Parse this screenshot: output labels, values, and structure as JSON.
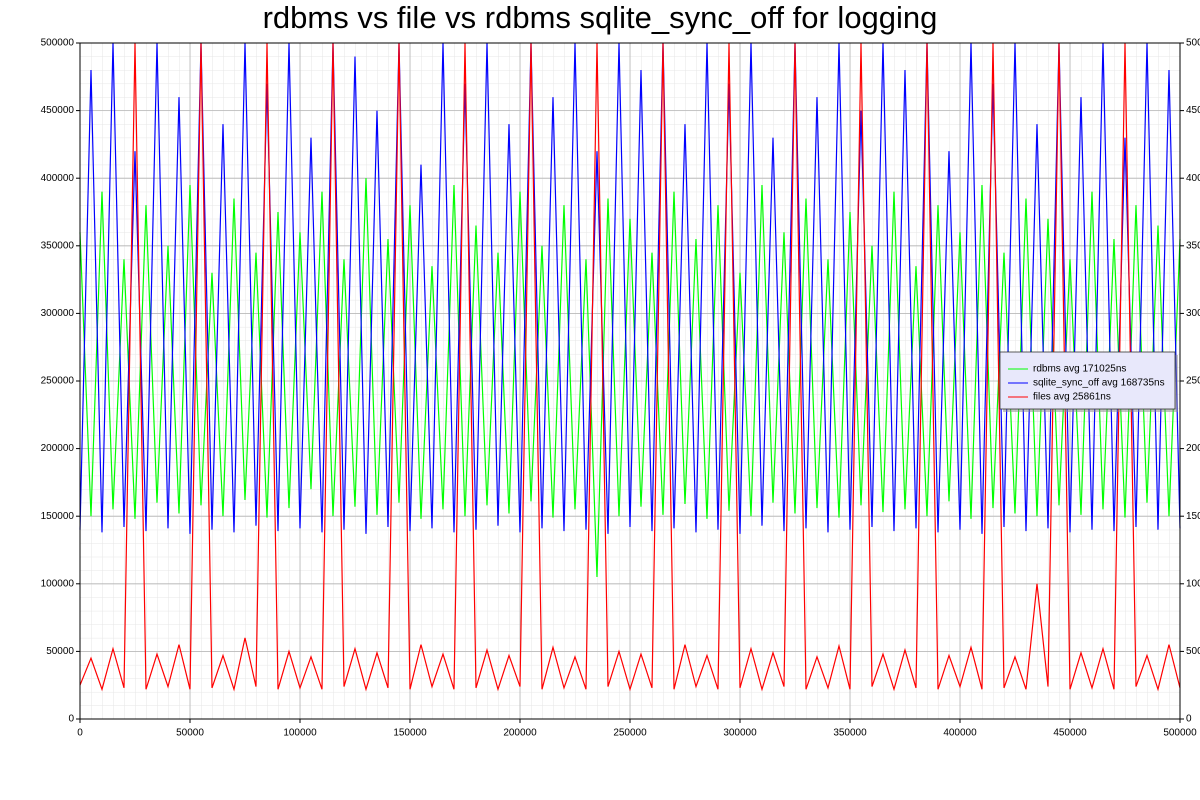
{
  "chart_data": {
    "type": "line",
    "title": "rdbms vs file vs  rdbms sqlite_sync_off for logging",
    "x": [
      0,
      5000,
      10000,
      15000,
      20000,
      25000,
      30000,
      35000,
      40000,
      45000,
      50000,
      55000,
      60000,
      65000,
      70000,
      75000,
      80000,
      85000,
      90000,
      95000,
      100000,
      105000,
      110000,
      115000,
      120000,
      125000,
      130000,
      135000,
      140000,
      145000,
      150000,
      155000,
      160000,
      165000,
      170000,
      175000,
      180000,
      185000,
      190000,
      195000,
      200000,
      205000,
      210000,
      215000,
      220000,
      225000,
      230000,
      235000,
      240000,
      245000,
      250000,
      255000,
      260000,
      265000,
      270000,
      275000,
      280000,
      285000,
      290000,
      295000,
      300000,
      305000,
      310000,
      315000,
      320000,
      325000,
      330000,
      335000,
      340000,
      345000,
      350000,
      355000,
      360000,
      365000,
      370000,
      375000,
      380000,
      385000,
      390000,
      395000,
      400000,
      405000,
      410000,
      415000,
      420000,
      425000,
      430000,
      435000,
      440000,
      445000,
      450000,
      455000,
      460000,
      465000,
      470000,
      475000,
      480000,
      485000,
      490000,
      495000,
      500000
    ],
    "series": [
      {
        "name": "rdbms avg 171025ns",
        "color": "#00ff00",
        "values": [
          360000,
          150000,
          390000,
          155000,
          340000,
          148000,
          380000,
          160000,
          350000,
          152000,
          395000,
          158000,
          330000,
          150000,
          385000,
          162000,
          345000,
          149000,
          375000,
          156000,
          360000,
          170000,
          390000,
          150000,
          340000,
          157000,
          400000,
          151000,
          355000,
          160000,
          380000,
          148000,
          335000,
          155000,
          395000,
          150000,
          365000,
          158000,
          345000,
          152000,
          390000,
          161000,
          350000,
          149000,
          380000,
          155000,
          340000,
          105000,
          385000,
          150000,
          370000,
          157000,
          345000,
          151000,
          390000,
          159000,
          355000,
          148000,
          380000,
          154000,
          330000,
          150000,
          395000,
          160000,
          360000,
          152000,
          385000,
          156000,
          340000,
          149000,
          375000,
          158000,
          350000,
          153000,
          390000,
          155000,
          335000,
          150000,
          380000,
          161000,
          360000,
          148000,
          395000,
          156000,
          345000,
          152000,
          385000,
          150000,
          370000,
          158000,
          340000,
          151000,
          390000,
          155000,
          355000,
          149000,
          380000,
          160000,
          365000,
          150000,
          355000
        ]
      },
      {
        "name": "sqlite_sync_off avg 168735ns",
        "color": "#0000ff",
        "values": [
          140000,
          480000,
          138000,
          500000,
          142000,
          420000,
          139000,
          500000,
          141000,
          460000,
          137000,
          500000,
          140000,
          440000,
          138000,
          500000,
          143000,
          470000,
          139000,
          500000,
          141000,
          430000,
          138000,
          500000,
          140000,
          490000,
          137000,
          450000,
          142000,
          500000,
          139000,
          410000,
          141000,
          500000,
          138000,
          470000,
          140000,
          500000,
          143000,
          440000,
          138000,
          500000,
          141000,
          460000,
          139000,
          500000,
          140000,
          420000,
          137000,
          500000,
          142000,
          480000,
          139000,
          500000,
          141000,
          440000,
          138000,
          500000,
          140000,
          470000,
          137000,
          500000,
          143000,
          430000,
          139000,
          500000,
          141000,
          460000,
          138000,
          500000,
          140000,
          450000,
          142000,
          500000,
          139000,
          480000,
          141000,
          500000,
          138000,
          420000,
          140000,
          500000,
          137000,
          470000,
          142000,
          500000,
          139000,
          440000,
          141000,
          500000,
          138000,
          460000,
          140000,
          500000,
          139000,
          430000,
          142000,
          500000,
          140000,
          480000,
          141000
        ]
      },
      {
        "name": "files avg 25861ns",
        "color": "#ff0000",
        "values": [
          25000,
          45000,
          22000,
          52000,
          23000,
          500000,
          22000,
          48000,
          24000,
          55000,
          22000,
          500000,
          23000,
          47000,
          22000,
          60000,
          24000,
          500000,
          22000,
          50000,
          23000,
          46000,
          22000,
          500000,
          24000,
          52000,
          22000,
          49000,
          23000,
          500000,
          22000,
          55000,
          24000,
          48000,
          22000,
          500000,
          23000,
          51000,
          22000,
          47000,
          24000,
          500000,
          22000,
          53000,
          23000,
          46000,
          22000,
          500000,
          24000,
          50000,
          22000,
          48000,
          23000,
          500000,
          22000,
          55000,
          24000,
          47000,
          22000,
          500000,
          23000,
          52000,
          22000,
          49000,
          24000,
          500000,
          22000,
          46000,
          23000,
          54000,
          22000,
          500000,
          24000,
          48000,
          22000,
          51000,
          23000,
          500000,
          22000,
          47000,
          24000,
          53000,
          22000,
          500000,
          23000,
          46000,
          22000,
          100000,
          24000,
          500000,
          22000,
          49000,
          23000,
          52000,
          22000,
          500000,
          24000,
          47000,
          22000,
          55000,
          23000
        ]
      }
    ],
    "xlim": [
      0,
      500000
    ],
    "ylim": [
      0,
      500000
    ],
    "xticks": [
      0,
      50000,
      100000,
      150000,
      200000,
      250000,
      300000,
      350000,
      400000,
      450000,
      500000
    ],
    "yticks": [
      0,
      50000,
      100000,
      150000,
      200000,
      250000,
      300000,
      350000,
      400000,
      450000,
      500000
    ],
    "grid": true,
    "legend": "right"
  }
}
